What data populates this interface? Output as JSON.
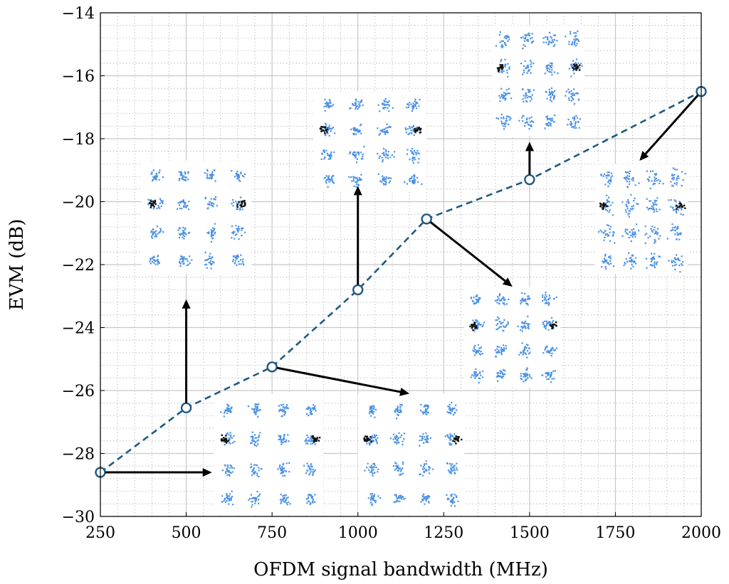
{
  "chart_data": {
    "type": "line",
    "title": "",
    "xlabel": "OFDM signal bandwidth (MHz)",
    "ylabel": "EVM (dB)",
    "xlim": [
      250,
      2000
    ],
    "ylim": [
      -30,
      -14
    ],
    "xticks": [
      250,
      500,
      750,
      1000,
      1250,
      1500,
      1750,
      2000
    ],
    "yticks": [
      -30,
      -28,
      -26,
      -24,
      -22,
      -20,
      -18,
      -16,
      -14
    ],
    "ytick_labels": [
      "−30",
      "−28",
      "−26",
      "−24",
      "−22",
      "−20",
      "−18",
      "−16",
      "−14"
    ],
    "grid": "major and minor",
    "legend": "none",
    "series": [
      {
        "x": [
          250,
          500,
          750,
          1000,
          1200,
          1500,
          2000
        ],
        "y": [
          -28.6,
          -26.55,
          -25.25,
          -22.8,
          -20.55,
          -19.3,
          -16.5
        ],
        "line_style": "dashed",
        "marker": "open-circle",
        "color": "#1f5a80"
      }
    ],
    "annotations": [
      {
        "type": "constellation-inset",
        "from_x": 250,
        "from_y": -28.6,
        "arrow_to_x": 575,
        "arrow_to_y": -28.6,
        "inset_x": [
          580,
          900
        ],
        "inset_y": [
          -29.9,
          -26.1
        ],
        "grid": 4,
        "spread": 0.25,
        "spurs": true
      },
      {
        "type": "constellation-inset",
        "from_x": 500,
        "from_y": -26.55,
        "arrow_to_x": 500,
        "arrow_to_y": -23.1,
        "inset_x": [
          370,
          690
        ],
        "inset_y": [
          -22.3,
          -18.7
        ],
        "grid": 4,
        "spread": 0.35,
        "spurs": true
      },
      {
        "type": "constellation-inset",
        "from_x": 750,
        "from_y": -25.25,
        "arrow_to_x": 1150,
        "arrow_to_y": -26.1,
        "inset_x": [
          1000,
          1310
        ],
        "inset_y": [
          -29.9,
          -26.1
        ],
        "grid": 4,
        "spread": 0.3,
        "spurs": true
      },
      {
        "type": "constellation-inset",
        "from_x": 1000,
        "from_y": -22.8,
        "arrow_to_x": 1000,
        "arrow_to_y": -19.5,
        "inset_x": [
          870,
          1200
        ],
        "inset_y": [
          -19.7,
          -16.5
        ],
        "grid": 4,
        "spread": 0.35,
        "spurs": true
      },
      {
        "type": "constellation-inset",
        "from_x": 1200,
        "from_y": -20.55,
        "arrow_to_x": 1450,
        "arrow_to_y": -22.7,
        "inset_x": [
          1310,
          1590
        ],
        "inset_y": [
          -25.9,
          -22.7
        ],
        "grid": 4,
        "spread": 0.45,
        "spurs": true
      },
      {
        "type": "constellation-inset",
        "from_x": 1500,
        "from_y": -19.3,
        "arrow_to_x": 1500,
        "arrow_to_y": -18.1,
        "inset_x": [
          1390,
          1660
        ],
        "inset_y": [
          -17.9,
          -14.4
        ],
        "grid": 4,
        "spread": 0.5,
        "spurs": true
      },
      {
        "type": "constellation-inset",
        "from_x": 2000,
        "from_y": -16.5,
        "arrow_to_x": 1820,
        "arrow_to_y": -18.7,
        "inset_x": [
          1690,
          1960
        ],
        "inset_y": [
          -22.3,
          -18.8
        ],
        "grid": 4,
        "spread": 0.7,
        "spurs": true
      }
    ]
  },
  "colors": {
    "line": "#1f5a80",
    "constellation": "#2d7fe0",
    "spur": "#111111",
    "arrow": "#000000",
    "grid_major": "#c8c8c8",
    "grid_minor": "#b0b0b0"
  }
}
